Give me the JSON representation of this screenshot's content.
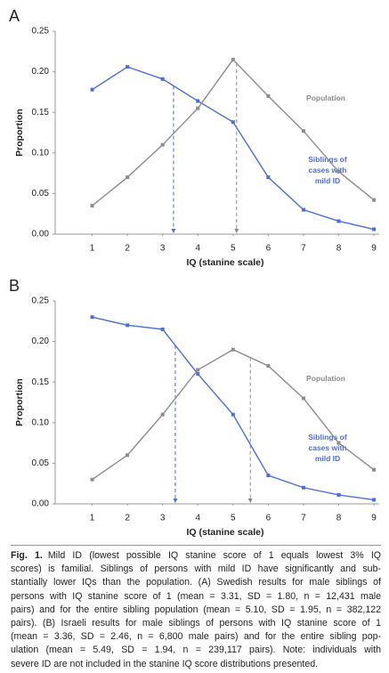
{
  "chart_data": [
    {
      "type": "line",
      "panel": "A",
      "ylabel": "Proportion",
      "xlabel": "IQ (stanine scale)",
      "x": [
        1,
        2,
        3,
        4,
        5,
        6,
        7,
        8,
        9
      ],
      "xlim": [
        0,
        9.15
      ],
      "xticks": [
        1,
        2,
        3,
        4,
        5,
        6,
        7,
        8,
        9
      ],
      "ylim": [
        0,
        0.25
      ],
      "yticks": [
        {
          "value": 0,
          "label": "0.00"
        },
        {
          "value": 0.05,
          "label": "0.05"
        },
        {
          "value": 0.1,
          "label": "0.10"
        },
        {
          "value": 0.15,
          "label": "0.15"
        },
        {
          "value": 0.2,
          "label": "0.20"
        },
        {
          "value": 0.25,
          "label": "0.25"
        }
      ],
      "series": [
        {
          "name": [
            "Siblings of",
            "cases with",
            "mild ID"
          ],
          "color": "#4a6fd8",
          "mean": 3.31,
          "values": [
            0.178,
            0.206,
            0.191,
            0.164,
            0.138,
            0.07,
            0.03,
            0.016,
            0.006
          ]
        },
        {
          "name": [
            "Population"
          ],
          "color": "#8c8c8c",
          "mean": 5.1,
          "values": [
            0.035,
            0.07,
            0.11,
            0.155,
            0.215,
            0.17,
            0.127,
            0.077,
            0.042
          ]
        }
      ]
    },
    {
      "type": "line",
      "panel": "B",
      "ylabel": "Proportion",
      "xlabel": "IQ (stanine scale)",
      "x": [
        1,
        2,
        3,
        4,
        5,
        6,
        7,
        8,
        9
      ],
      "xlim": [
        0,
        9.15
      ],
      "xticks": [
        1,
        2,
        3,
        4,
        5,
        6,
        7,
        8,
        9
      ],
      "ylim": [
        0,
        0.25
      ],
      "yticks": [
        {
          "value": 0,
          "label": "0.00"
        },
        {
          "value": 0.05,
          "label": "0.05"
        },
        {
          "value": 0.1,
          "label": "0.10"
        },
        {
          "value": 0.15,
          "label": "0.15"
        },
        {
          "value": 0.2,
          "label": "0.20"
        },
        {
          "value": 0.25,
          "label": "0.25"
        }
      ],
      "series": [
        {
          "name": [
            "Siblings of",
            "cases with",
            "mild ID"
          ],
          "color": "#4a6fd8",
          "mean": 3.36,
          "values": [
            0.23,
            0.22,
            0.215,
            0.16,
            0.11,
            0.035,
            0.02,
            0.011,
            0.005
          ]
        },
        {
          "name": [
            "Population"
          ],
          "color": "#8c8c8c",
          "mean": 5.49,
          "values": [
            0.03,
            0.06,
            0.11,
            0.165,
            0.19,
            0.17,
            0.13,
            0.075,
            0.042
          ]
        }
      ]
    }
  ],
  "caption": {
    "label": "Fig. 1.",
    "lines": [
      "Mild ID (lowest possible IQ stanine score of 1 equals lowest 3% IQ",
      "scores) is familial. Siblings of persons with mild ID have significantly and sub-",
      "stantially lower IQs than the population. (A) Swedish results for male siblings of",
      "persons with IQ stanine score of 1 (mean = 3.31, SD = 1.80, n = 12,431 male",
      "pairs) and for the entire sibling population (mean = 5.10, SD = 1.95, n = 382,122",
      "pairs). (B) Israeli results for male siblings of persons with IQ stanine score of 1",
      "(mean = 3.36, SD = 2.46, n = 6,800 male pairs) and for the entire sibling pop-",
      "ulation (mean = 5.49, SD = 1.94, n = 239,117 pairs). Note: individuals with",
      "severe ID are not included in the stanine IQ score distributions presented."
    ]
  }
}
